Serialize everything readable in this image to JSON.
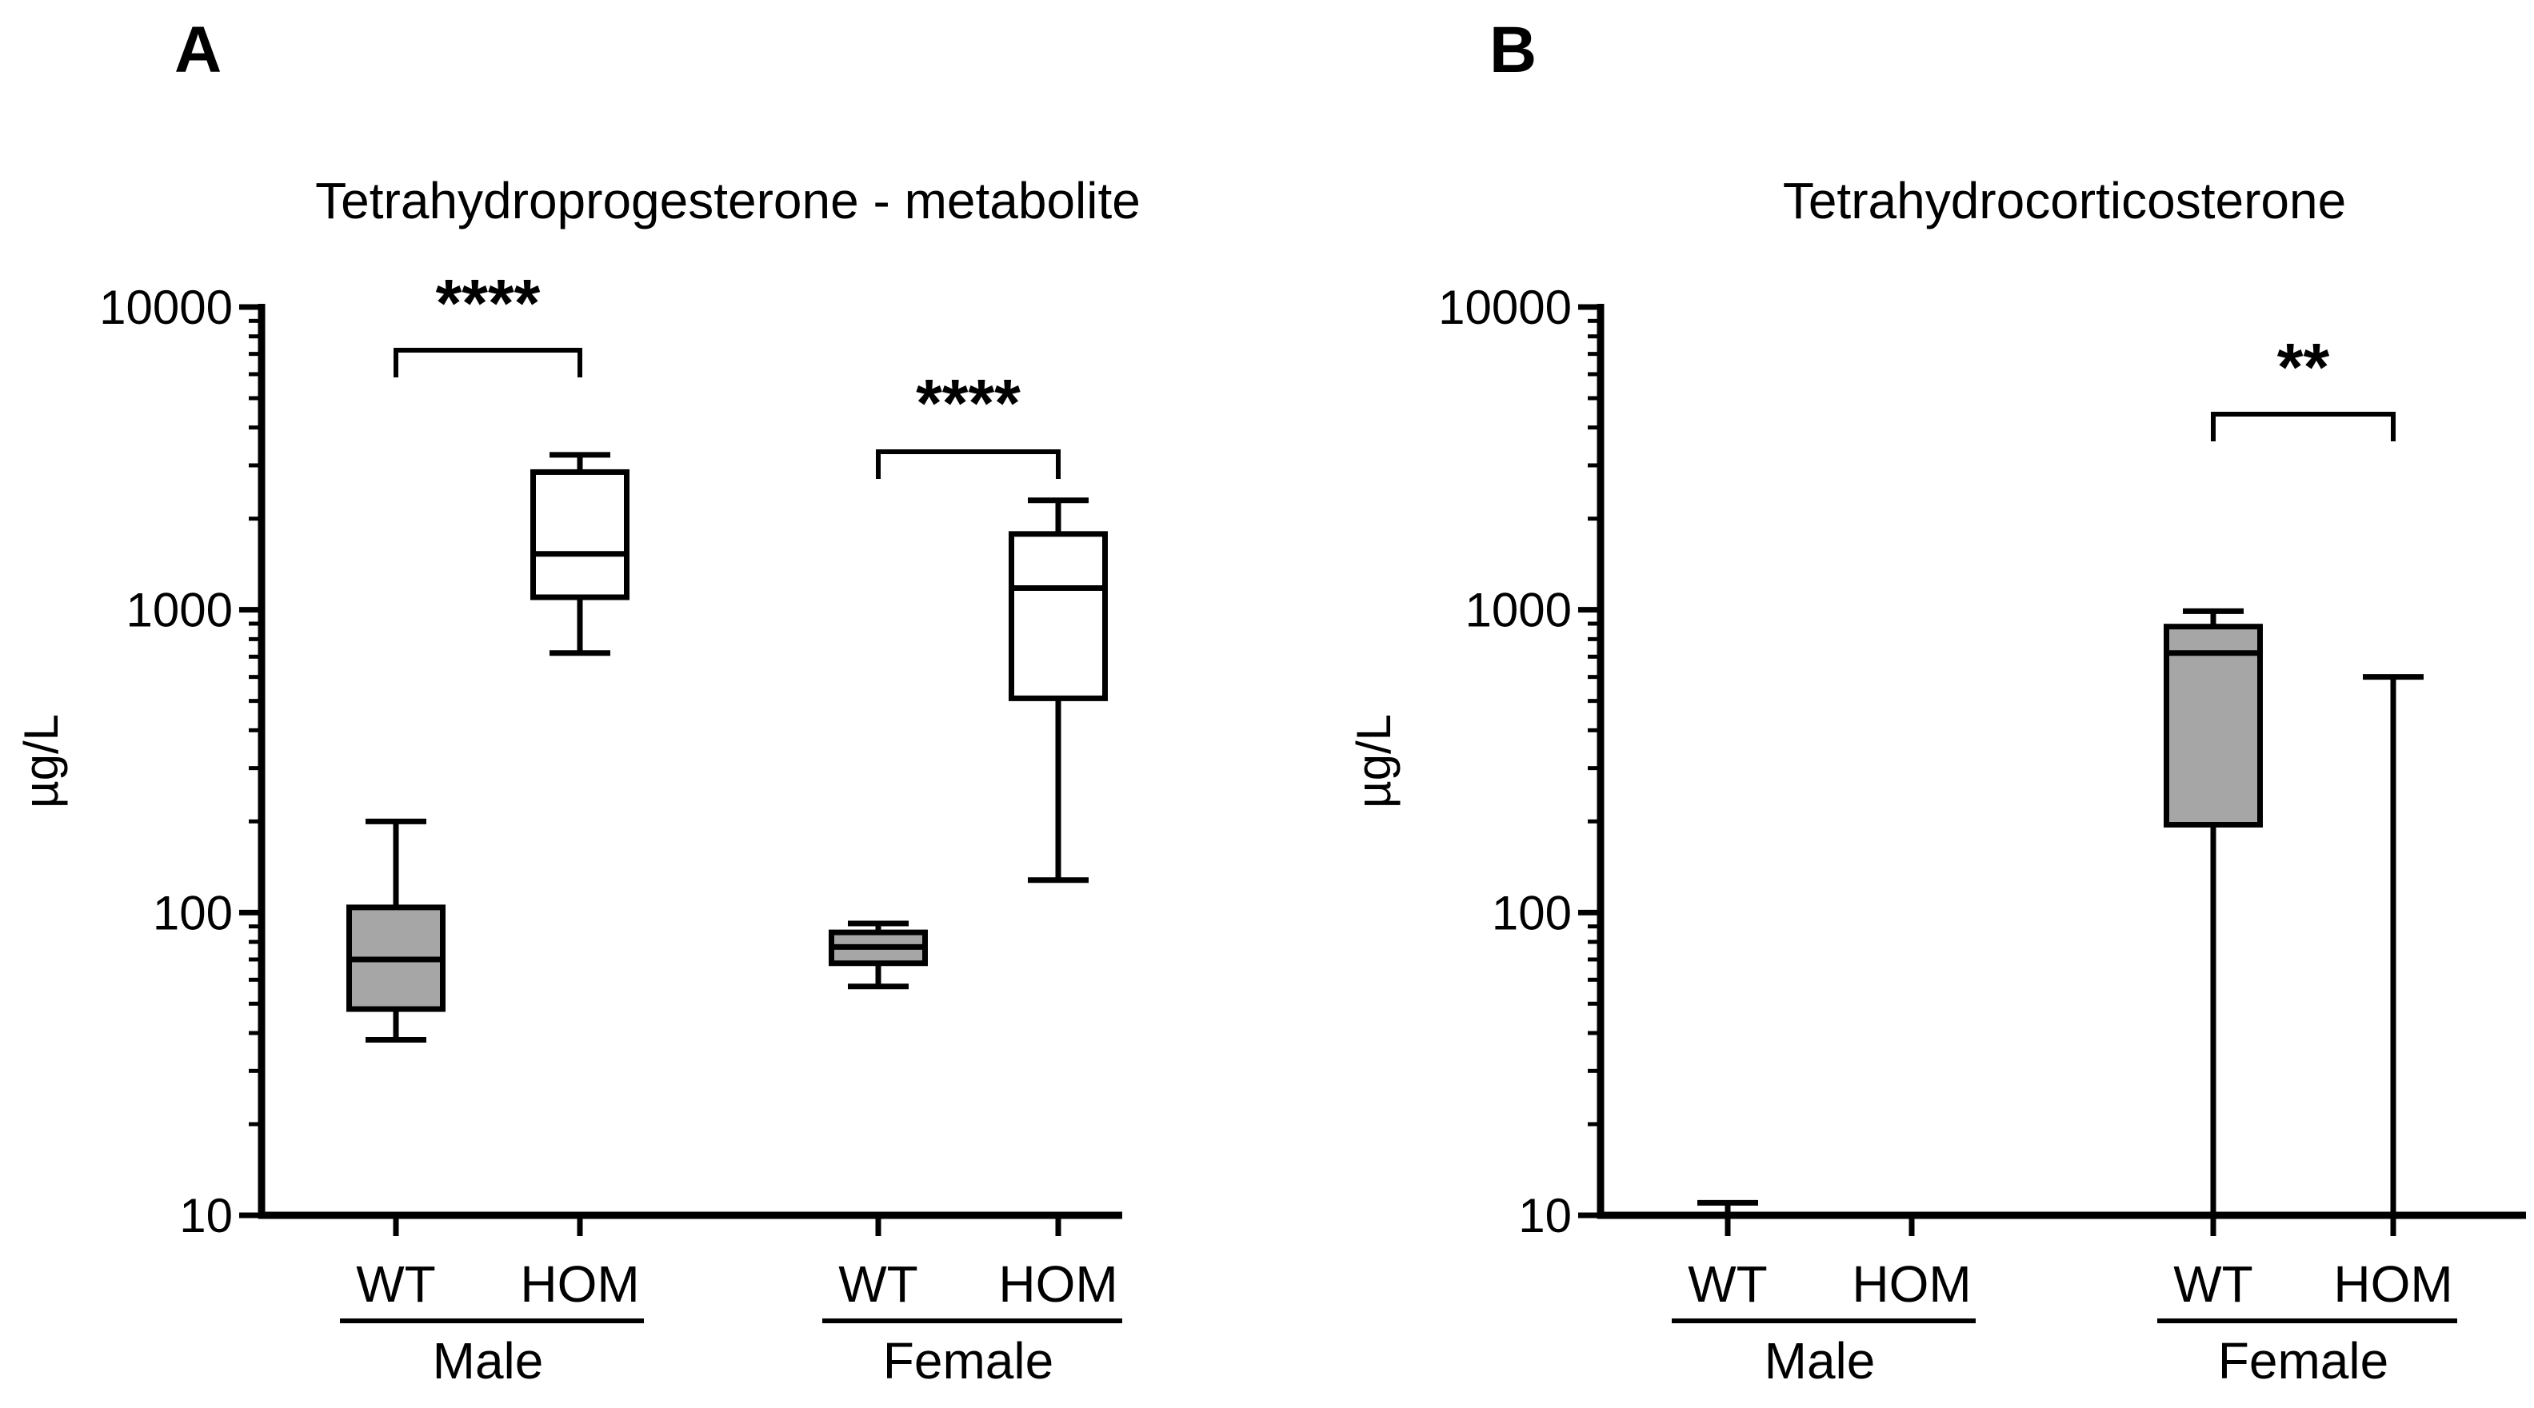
{
  "chart_data": [
    {
      "panel": "A",
      "type": "box",
      "title": "Tetrahydroprogesterone - metabolite",
      "ylabel": "µg/L",
      "yscale": "log",
      "ylim": [
        10,
        10000
      ],
      "yticks": [
        "10",
        "100",
        "1000",
        "10000"
      ],
      "groups": [
        {
          "name": "Male",
          "categories": [
            "WT",
            "HOM"
          ]
        },
        {
          "name": "Female",
          "categories": [
            "WT",
            "HOM"
          ]
        }
      ],
      "boxes": [
        {
          "group": "Male",
          "category": "WT",
          "fill": "#a6a6a6",
          "min": 38,
          "q1": 48,
          "median": 70,
          "q3": 104,
          "max": 200
        },
        {
          "group": "Male",
          "category": "HOM",
          "fill": "#ffffff",
          "min": 720,
          "q1": 1100,
          "median": 1530,
          "q3": 2850,
          "max": 3250
        },
        {
          "group": "Female",
          "category": "WT",
          "fill": "#a6a6a6",
          "min": 57,
          "q1": 68,
          "median": 77,
          "q3": 86,
          "max": 92
        },
        {
          "group": "Female",
          "category": "HOM",
          "fill": "#ffffff",
          "min": 128,
          "q1": 510,
          "median": 1180,
          "q3": 1780,
          "max": 2300
        }
      ],
      "significance": [
        {
          "group": "Male",
          "label": "****"
        },
        {
          "group": "Female",
          "label": "****"
        }
      ]
    },
    {
      "panel": "B",
      "type": "box",
      "title": "Tetrahydrocorticosterone",
      "ylabel": "µg/L",
      "yscale": "log",
      "ylim": [
        10,
        10000
      ],
      "yticks": [
        "10",
        "100",
        "1000",
        "10000"
      ],
      "groups": [
        {
          "name": "Male",
          "categories": [
            "WT",
            "HOM"
          ]
        },
        {
          "name": "Female",
          "categories": [
            "WT",
            "HOM"
          ]
        }
      ],
      "boxes": [
        {
          "group": "Male",
          "category": "WT",
          "fill": "#a6a6a6",
          "min": 10,
          "q1": 10,
          "median": 10,
          "q3": 10,
          "max": 11
        },
        {
          "group": "Female",
          "category": "WT",
          "fill": "#a6a6a6",
          "min": 10,
          "q1": 195,
          "median": 720,
          "q3": 880,
          "max": 990
        },
        {
          "group": "Female",
          "category": "HOM",
          "fill": "#ffffff",
          "min": 10,
          "q1": 10,
          "median": 10,
          "q3": 10,
          "max": 600
        }
      ],
      "significance": [
        {
          "group": "Female",
          "label": "**"
        }
      ]
    }
  ]
}
